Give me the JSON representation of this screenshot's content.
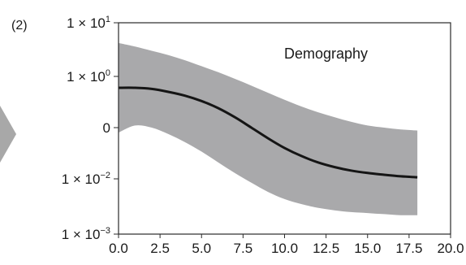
{
  "panel_label": "(2)",
  "colors": {
    "band": "#a9a9ab",
    "line": "#151515",
    "axis": "#2a2a2a",
    "arrow": "#a8a8a8"
  },
  "icons": {
    "left_arrow": "chevron-right-arrow"
  },
  "chart_data": {
    "type": "line",
    "title": "",
    "annotation": "Demography",
    "xlabel": "",
    "ylabel": "",
    "xlim": [
      0,
      20
    ],
    "x_ticks": [
      0,
      2.5,
      5,
      7.5,
      10,
      12.5,
      15,
      17.5,
      20
    ],
    "x_tick_labels": [
      "0.0",
      "2.5",
      "5.0",
      "7.5",
      "10.0",
      "12.5",
      "15.0",
      "17.5",
      "20.0"
    ],
    "y_scale": "log",
    "y_ticks": [
      {
        "base": "1 × 10",
        "exp": "1"
      },
      {
        "base": "1 × 10",
        "exp": "0"
      },
      {
        "base": "0",
        "exp": ""
      },
      {
        "base": "1 × 10",
        "exp": "−2"
      },
      {
        "base": "1 × 10",
        "exp": "−3"
      }
    ],
    "series": [
      {
        "kind": "mean",
        "x": [
          0,
          1,
          2,
          3,
          4,
          5,
          6,
          7,
          8,
          9,
          10,
          11,
          12,
          13,
          14,
          15,
          16,
          17,
          18
        ],
        "y": [
          0.6,
          0.6,
          0.57,
          0.5,
          0.42,
          0.33,
          0.24,
          0.16,
          0.1,
          0.062,
          0.04,
          0.028,
          0.021,
          0.017,
          0.0145,
          0.013,
          0.012,
          0.0112,
          0.0107
        ]
      },
      {
        "kind": "band",
        "x": [
          0,
          1,
          2,
          3,
          4,
          5,
          6,
          7,
          8,
          9,
          10,
          11,
          12,
          13,
          14,
          15,
          16,
          17,
          18
        ],
        "lower": [
          0.08,
          0.11,
          0.1,
          0.075,
          0.052,
          0.034,
          0.021,
          0.013,
          0.0085,
          0.0058,
          0.0043,
          0.0035,
          0.003,
          0.0027,
          0.0025,
          0.0024,
          0.0023,
          0.0022,
          0.0022
        ],
        "upper": [
          4.2,
          3.6,
          3.0,
          2.5,
          2.0,
          1.55,
          1.2,
          0.9,
          0.66,
          0.48,
          0.35,
          0.26,
          0.2,
          0.16,
          0.13,
          0.11,
          0.1,
          0.092,
          0.088
        ]
      }
    ],
    "grid": false,
    "legend": "none"
  }
}
